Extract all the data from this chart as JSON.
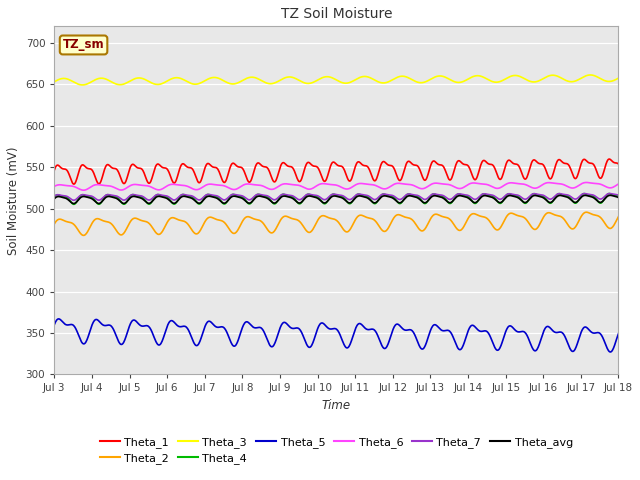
{
  "title": "TZ Soil Moisture",
  "ylabel": "Soil Moisture (mV)",
  "xlabel": "Time",
  "annotation": "TZ_sm",
  "xlim": [
    0,
    15
  ],
  "ylim": [
    300,
    720
  ],
  "yticks": [
    300,
    350,
    400,
    450,
    500,
    550,
    600,
    650,
    700
  ],
  "xtick_labels": [
    "Jul 3",
    "Jul 4",
    "Jul 5",
    "Jul 6",
    "Jul 7",
    "Jul 8",
    "Jul 9",
    "Jul 10",
    "Jul 11",
    "Jul 12",
    "Jul 13",
    "Jul 14",
    "Jul 15",
    "Jul 16",
    "Jul 17",
    "Jul 18"
  ],
  "n_days": 15,
  "series": {
    "Theta_1": {
      "color": "#FF0000",
      "base": 543,
      "amp": 10,
      "freq": 1.5,
      "amp2": 4,
      "freq2": 3.0,
      "trend": 0.5
    },
    "Theta_2": {
      "color": "#FFA500",
      "base": 479,
      "amp": 9,
      "freq": 1.0,
      "amp2": 3,
      "freq2": 2.0,
      "trend": 0.6
    },
    "Theta_3": {
      "color": "#FFFF00",
      "base": 653,
      "amp": 4,
      "freq": 1.0,
      "amp2": 0,
      "freq2": 0,
      "trend": 0.3
    },
    "Theta_4": {
      "color": "#00BB00",
      "base": 512,
      "amp": 5,
      "freq": 1.5,
      "amp2": 2,
      "freq2": 3.0,
      "trend": 0.1
    },
    "Theta_5": {
      "color": "#0000CC",
      "base": 355,
      "amp": 12,
      "freq": 1.0,
      "amp2": 6,
      "freq2": 2.0,
      "trend": -0.7
    },
    "Theta_6": {
      "color": "#FF44FF",
      "base": 526,
      "amp": 3,
      "freq": 1.0,
      "amp2": 1,
      "freq2": 2.0,
      "trend": 0.2
    },
    "Theta_7": {
      "color": "#9933CC",
      "base": 514,
      "amp": 3,
      "freq": 1.5,
      "amp2": 1,
      "freq2": 3.0,
      "trend": 0.1
    },
    "Theta_avg": {
      "color": "#000000",
      "base": 511,
      "amp": 4,
      "freq": 1.5,
      "amp2": 1,
      "freq2": 3.0,
      "trend": 0.1
    }
  },
  "legend_order": [
    "Theta_1",
    "Theta_2",
    "Theta_3",
    "Theta_4",
    "Theta_5",
    "Theta_6",
    "Theta_7",
    "Theta_avg"
  ],
  "bg_color": "#E8E8E8",
  "fig_bg": "#FFFFFF",
  "annotation_bg": "#FFFFCC",
  "annotation_color": "#880000",
  "annotation_border": "#AA7700"
}
